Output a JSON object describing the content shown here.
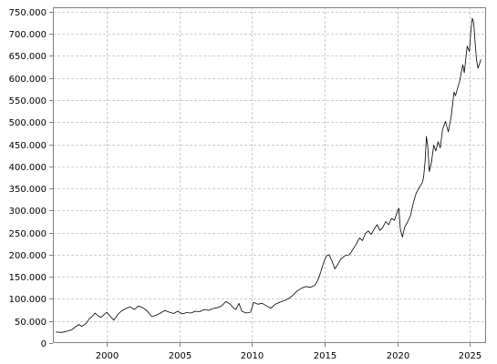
{
  "chart_data": {
    "type": "line",
    "title": "",
    "xlabel": "",
    "ylabel": "",
    "xlim": [
      1996.3,
      2026.1
    ],
    "ylim": [
      0,
      760000
    ],
    "grid": true,
    "legend": "none",
    "x_ticks": [
      2000,
      2005,
      2010,
      2015,
      2020,
      2025
    ],
    "x_tick_labels": [
      "2000",
      "2005",
      "2010",
      "2015",
      "2020",
      "2025"
    ],
    "y_ticks": [
      0,
      50000,
      100000,
      150000,
      200000,
      250000,
      300000,
      350000,
      400000,
      450000,
      500000,
      550000,
      600000,
      650000,
      700000,
      750000
    ],
    "y_tick_labels": [
      "0",
      "50.000",
      "100.000",
      "150.000",
      "200.000",
      "250.000",
      "300.000",
      "350.000",
      "400.000",
      "450.000",
      "500.000",
      "550.000",
      "600.000",
      "650.000",
      "700.000",
      "750.000"
    ],
    "colors": {
      "line": "#000000",
      "grid": "#c0c0c0",
      "axis": "#808080"
    },
    "series": [
      {
        "x": [
          1996.5,
          1996.9,
          1997.3,
          1997.6,
          1997.9,
          1998.1,
          1998.3,
          1998.6,
          1998.8,
          1999.0,
          1999.2,
          1999.4,
          1999.6,
          1999.8,
          2000.0,
          2000.2,
          2000.5,
          2000.8,
          2001.0,
          2001.3,
          2001.6,
          2001.9,
          2002.2,
          2002.5,
          2002.8,
          2003.1,
          2003.4,
          2003.7,
          2004.0,
          2004.3,
          2004.6,
          2004.9,
          2005.2,
          2005.5,
          2005.8,
          2006.1,
          2006.4,
          2006.7,
          2007.0,
          2007.3,
          2007.6,
          2007.9,
          2008.2,
          2008.5,
          2008.7,
          2008.9,
          2009.1,
          2009.3,
          2009.6,
          2009.9,
          2010.1,
          2010.4,
          2010.7,
          2011.0,
          2011.3,
          2011.6,
          2011.9,
          2012.2,
          2012.5,
          2012.8,
          2013.1,
          2013.4,
          2013.7,
          2014.0,
          2014.3,
          2014.5,
          2014.7,
          2014.9,
          2015.1,
          2015.3,
          2015.5,
          2015.7,
          2015.9,
          2016.1,
          2016.4,
          2016.7,
          2017.0,
          2017.2,
          2017.4,
          2017.6,
          2017.8,
          2018.0,
          2018.2,
          2018.4,
          2018.6,
          2018.8,
          2019.0,
          2019.2,
          2019.4,
          2019.6,
          2019.8,
          2020.0,
          2020.1,
          2020.2,
          2020.35,
          2020.5,
          2020.7,
          2020.9,
          2021.1,
          2021.3,
          2021.5,
          2021.7,
          2021.8,
          2021.9,
          2022.0,
          2022.1,
          2022.2,
          2022.35,
          2022.5,
          2022.65,
          2022.8,
          2022.95,
          2023.1,
          2023.3,
          2023.5,
          2023.7,
          2023.9,
          2024.0,
          2024.1,
          2024.3,
          2024.5,
          2024.6,
          2024.8,
          2024.95,
          2025.05,
          2025.15,
          2025.25,
          2025.35,
          2025.45,
          2025.55,
          2025.65,
          2025.75
        ],
        "y": [
          25000,
          24000,
          27000,
          30000,
          38000,
          42000,
          38000,
          45000,
          55000,
          60000,
          68000,
          62000,
          58000,
          64000,
          70000,
          62000,
          52000,
          66000,
          72000,
          78000,
          82000,
          76000,
          84000,
          80000,
          72000,
          60000,
          63000,
          68000,
          74000,
          70000,
          67000,
          72000,
          66000,
          69000,
          68000,
          72000,
          71000,
          76000,
          74000,
          78000,
          80000,
          84000,
          94000,
          88000,
          80000,
          76000,
          90000,
          72000,
          68000,
          70000,
          92000,
          88000,
          90000,
          84000,
          79000,
          88000,
          92000,
          96000,
          100000,
          108000,
          118000,
          124000,
          128000,
          126000,
          130000,
          140000,
          158000,
          180000,
          197000,
          200000,
          186000,
          168000,
          178000,
          190000,
          198000,
          200000,
          215000,
          226000,
          238000,
          232000,
          248000,
          254000,
          246000,
          258000,
          268000,
          255000,
          262000,
          275000,
          268000,
          282000,
          278000,
          298000,
          305000,
          258000,
          240000,
          262000,
          274000,
          288000,
          318000,
          340000,
          352000,
          362000,
          375000,
          410000,
          468000,
          442000,
          388000,
          410000,
          448000,
          435000,
          456000,
          442000,
          482000,
          502000,
          478000,
          512000,
          568000,
          560000,
          572000,
          595000,
          630000,
          612000,
          672000,
          660000,
          705000,
          735000,
          725000,
          680000,
          640000,
          622000,
          632000,
          642000
        ]
      }
    ]
  }
}
